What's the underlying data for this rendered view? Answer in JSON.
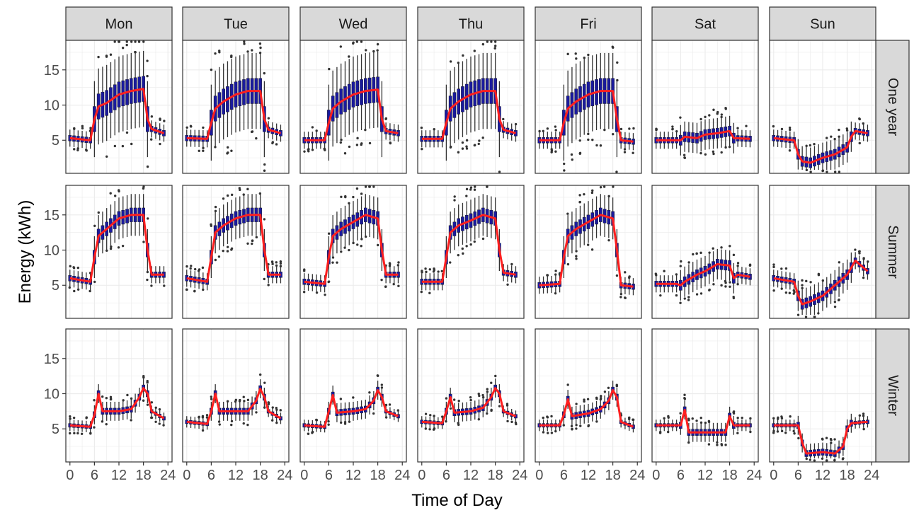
{
  "chart_data": {
    "type": "boxplot",
    "xlabel": "Time of Day",
    "ylabel": "Energy (kWh)",
    "x_ticks": [
      0,
      6,
      12,
      18,
      24
    ],
    "y_ticks": [
      5,
      10,
      15
    ],
    "xlim": [
      -1,
      25
    ],
    "ylim": [
      0.3,
      19.2
    ],
    "grid": true,
    "colors": {
      "box_fill": "#1a1a9c",
      "whisker": "#333333",
      "outlier": "#333333",
      "mean_line": "#ff1f1f",
      "strip_fill": "#d9d9d9"
    },
    "columns": [
      "Mon",
      "Tue",
      "Wed",
      "Thu",
      "Fri",
      "Sat",
      "Sun"
    ],
    "rows": [
      "One year",
      "Summer",
      "Winter"
    ],
    "mean_profiles": {
      "One year": {
        "Mon": [
          [
            0,
            5.3
          ],
          [
            5,
            5
          ],
          [
            6,
            8
          ],
          [
            7,
            9.8
          ],
          [
            9,
            10.3
          ],
          [
            12,
            11.5
          ],
          [
            15,
            12
          ],
          [
            18,
            12.3
          ],
          [
            19,
            8
          ],
          [
            20,
            6.6
          ],
          [
            23,
            6
          ]
        ],
        "Tue": [
          [
            0,
            5.3
          ],
          [
            5,
            5.2
          ],
          [
            6,
            7.5
          ],
          [
            7,
            9.5
          ],
          [
            9,
            10.5
          ],
          [
            12,
            11.5
          ],
          [
            15,
            12
          ],
          [
            18,
            12
          ],
          [
            19,
            8
          ],
          [
            20,
            6.5
          ],
          [
            23,
            6
          ]
        ],
        "Wed": [
          [
            0,
            5
          ],
          [
            5,
            5
          ],
          [
            6,
            7.5
          ],
          [
            7,
            9.5
          ],
          [
            9,
            10.5
          ],
          [
            12,
            11.5
          ],
          [
            15,
            12
          ],
          [
            18,
            12.2
          ],
          [
            19,
            8
          ],
          [
            20,
            6.3
          ],
          [
            23,
            6
          ]
        ],
        "Thu": [
          [
            0,
            5.2
          ],
          [
            5,
            5.2
          ],
          [
            6,
            7.5
          ],
          [
            7,
            9.5
          ],
          [
            9,
            10.5
          ],
          [
            12,
            11.5
          ],
          [
            15,
            12
          ],
          [
            18,
            12
          ],
          [
            19,
            8
          ],
          [
            20,
            6.5
          ],
          [
            23,
            6
          ]
        ],
        "Fri": [
          [
            0,
            5
          ],
          [
            5,
            5
          ],
          [
            6,
            7.5
          ],
          [
            7,
            9.5
          ],
          [
            9,
            10.5
          ],
          [
            12,
            11.5
          ],
          [
            15,
            12
          ],
          [
            18,
            12
          ],
          [
            19,
            8
          ],
          [
            20,
            5
          ],
          [
            23,
            4.8
          ]
        ],
        "Sat": [
          [
            0,
            5
          ],
          [
            6,
            5
          ],
          [
            7,
            5.5
          ],
          [
            10,
            5.3
          ],
          [
            12,
            5.8
          ],
          [
            15,
            6
          ],
          [
            18,
            6.3
          ],
          [
            19,
            5.3
          ],
          [
            23,
            5.2
          ]
        ],
        "Sun": [
          [
            0,
            5.3
          ],
          [
            5,
            5
          ],
          [
            6,
            3
          ],
          [
            7,
            2
          ],
          [
            9,
            1.8
          ],
          [
            12,
            2.5
          ],
          [
            15,
            3
          ],
          [
            18,
            4
          ],
          [
            19,
            5.5
          ],
          [
            20,
            6.3
          ],
          [
            23,
            6
          ]
        ]
      },
      "Summer": {
        "Mon": [
          [
            0,
            6
          ],
          [
            5,
            5.5
          ],
          [
            6,
            9
          ],
          [
            7,
            12
          ],
          [
            9,
            13
          ],
          [
            12,
            14.5
          ],
          [
            15,
            15
          ],
          [
            18,
            15
          ],
          [
            19,
            10
          ],
          [
            20,
            6.5
          ],
          [
            23,
            6.5
          ]
        ],
        "Tue": [
          [
            0,
            6
          ],
          [
            5,
            5.5
          ],
          [
            6,
            9
          ],
          [
            7,
            12.5
          ],
          [
            9,
            13.5
          ],
          [
            12,
            14.5
          ],
          [
            15,
            15
          ],
          [
            18,
            15
          ],
          [
            19,
            10
          ],
          [
            20,
            6.5
          ],
          [
            23,
            6.5
          ]
        ],
        "Wed": [
          [
            0,
            5.5
          ],
          [
            5,
            5.2
          ],
          [
            6,
            9
          ],
          [
            7,
            12
          ],
          [
            9,
            13
          ],
          [
            12,
            14
          ],
          [
            15,
            15
          ],
          [
            18,
            14.5
          ],
          [
            19,
            10
          ],
          [
            20,
            6.5
          ],
          [
            23,
            6.5
          ]
        ],
        "Thu": [
          [
            0,
            5.5
          ],
          [
            5,
            5.5
          ],
          [
            6,
            9
          ],
          [
            7,
            12.5
          ],
          [
            9,
            13.5
          ],
          [
            12,
            14.2
          ],
          [
            15,
            15
          ],
          [
            18,
            14.5
          ],
          [
            19,
            10
          ],
          [
            20,
            6.8
          ],
          [
            23,
            6.5
          ]
        ],
        "Fri": [
          [
            0,
            5
          ],
          [
            5,
            5.2
          ],
          [
            6,
            9
          ],
          [
            7,
            12
          ],
          [
            9,
            13
          ],
          [
            12,
            14
          ],
          [
            15,
            15
          ],
          [
            18,
            14.5
          ],
          [
            19,
            10
          ],
          [
            20,
            5
          ],
          [
            23,
            4.8
          ]
        ],
        "Sat": [
          [
            0,
            5.2
          ],
          [
            5,
            5.2
          ],
          [
            6,
            5
          ],
          [
            7,
            5.5
          ],
          [
            10,
            6.5
          ],
          [
            12,
            7
          ],
          [
            15,
            8
          ],
          [
            18,
            7.8
          ],
          [
            19,
            6
          ],
          [
            20,
            6.5
          ],
          [
            23,
            6.2
          ]
        ],
        "Sun": [
          [
            0,
            6
          ],
          [
            5,
            5.5
          ],
          [
            6,
            3.5
          ],
          [
            7,
            2.3
          ],
          [
            9,
            2.7
          ],
          [
            12,
            3.5
          ],
          [
            15,
            5
          ],
          [
            18,
            6.5
          ],
          [
            20,
            8.5
          ],
          [
            23,
            7
          ]
        ]
      },
      "Winter": {
        "Mon": [
          [
            0,
            5.5
          ],
          [
            5,
            5.3
          ],
          [
            6,
            7
          ],
          [
            7,
            10
          ],
          [
            8,
            7.5
          ],
          [
            12,
            7.5
          ],
          [
            15,
            7.8
          ],
          [
            17,
            9.5
          ],
          [
            18,
            10.8
          ],
          [
            19,
            10
          ],
          [
            20,
            7.5
          ],
          [
            23,
            6.5
          ]
        ],
        "Tue": [
          [
            0,
            6
          ],
          [
            5,
            5.7
          ],
          [
            6,
            7.5
          ],
          [
            7,
            10
          ],
          [
            8,
            7.5
          ],
          [
            12,
            7.5
          ],
          [
            15,
            7.5
          ],
          [
            17,
            9
          ],
          [
            18,
            10.7
          ],
          [
            19,
            9.5
          ],
          [
            20,
            7.5
          ],
          [
            23,
            6.5
          ]
        ],
        "Wed": [
          [
            0,
            5.5
          ],
          [
            5,
            5.3
          ],
          [
            6,
            7.5
          ],
          [
            7,
            9.8
          ],
          [
            8,
            7.3
          ],
          [
            12,
            7.5
          ],
          [
            15,
            7.8
          ],
          [
            17,
            9
          ],
          [
            18,
            10.5
          ],
          [
            19,
            9.5
          ],
          [
            20,
            7.5
          ],
          [
            23,
            6.8
          ]
        ],
        "Thu": [
          [
            0,
            6
          ],
          [
            5,
            5.8
          ],
          [
            6,
            7.5
          ],
          [
            7,
            9.5
          ],
          [
            8,
            7.3
          ],
          [
            12,
            7.5
          ],
          [
            15,
            8
          ],
          [
            17,
            9.5
          ],
          [
            18,
            10.8
          ],
          [
            19,
            10
          ],
          [
            20,
            7.5
          ],
          [
            23,
            6.8
          ]
        ],
        "Fri": [
          [
            0,
            5.5
          ],
          [
            5,
            5.5
          ],
          [
            6,
            7
          ],
          [
            7,
            9.2
          ],
          [
            8,
            6.8
          ],
          [
            12,
            7.2
          ],
          [
            15,
            7.8
          ],
          [
            17,
            9
          ],
          [
            18,
            10.5
          ],
          [
            19,
            9.5
          ],
          [
            20,
            6
          ],
          [
            23,
            5.3
          ]
        ],
        "Sat": [
          [
            0,
            5.5
          ],
          [
            6,
            5.5
          ],
          [
            7,
            7.7
          ],
          [
            8,
            4.5
          ],
          [
            12,
            4.5
          ],
          [
            17,
            4.5
          ],
          [
            18,
            6.8
          ],
          [
            19,
            5.5
          ],
          [
            23,
            5.5
          ]
        ],
        "Sun": [
          [
            0,
            5.5
          ],
          [
            6,
            5.5
          ],
          [
            7,
            3
          ],
          [
            8,
            1.5
          ],
          [
            12,
            1.7
          ],
          [
            15,
            1.5
          ],
          [
            17,
            2.5
          ],
          [
            18,
            5
          ],
          [
            19,
            5.8
          ],
          [
            23,
            6
          ]
        ]
      }
    }
  }
}
